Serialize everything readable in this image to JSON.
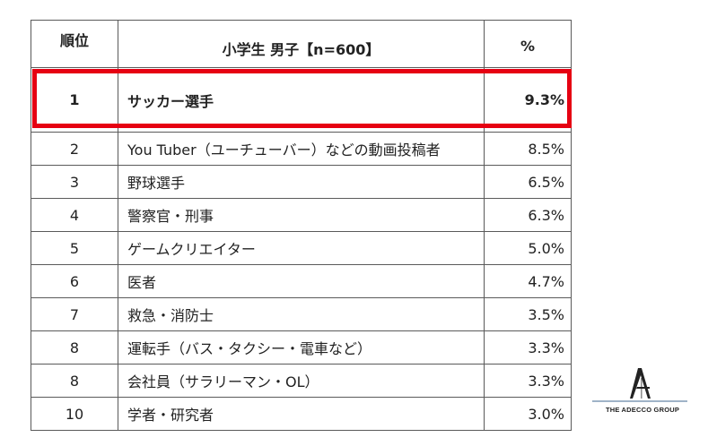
{
  "chart_data": {
    "type": "table",
    "columns": [
      "順位",
      "小学生 男子【n=600】",
      "%"
    ],
    "rows": [
      {
        "rank": "1",
        "name": "サッカー選手",
        "pct": "9.3%",
        "value": 9.3
      },
      {
        "rank": "2",
        "name": "You Tuber（ユーチューバー）などの動画投稿者",
        "pct": "8.5%",
        "value": 8.5
      },
      {
        "rank": "3",
        "name": "野球選手",
        "pct": "6.5%",
        "value": 6.5
      },
      {
        "rank": "4",
        "name": "警察官・刑事",
        "pct": "6.3%",
        "value": 6.3
      },
      {
        "rank": "5",
        "name": "ゲームクリエイター",
        "pct": "5.0%",
        "value": 5.0
      },
      {
        "rank": "6",
        "name": "医者",
        "pct": "4.7%",
        "value": 4.7
      },
      {
        "rank": "7",
        "name": "救急・消防士",
        "pct": "3.5%",
        "value": 3.5
      },
      {
        "rank": "8",
        "name": "運転手（バス・タクシー・電車など）",
        "pct": "3.3%",
        "value": 3.3
      },
      {
        "rank": "8",
        "name": "会社員（サラリーマン・OL）",
        "pct": "3.3%",
        "value": 3.3
      },
      {
        "rank": "10",
        "name": "学者・研究者",
        "pct": "3.0%",
        "value": 3.0
      }
    ],
    "highlighted_rank": "1",
    "highlight_color": "#e60012"
  },
  "logo": {
    "text": "THE ADECCO GROUP",
    "icon": "adecco-a-icon"
  }
}
